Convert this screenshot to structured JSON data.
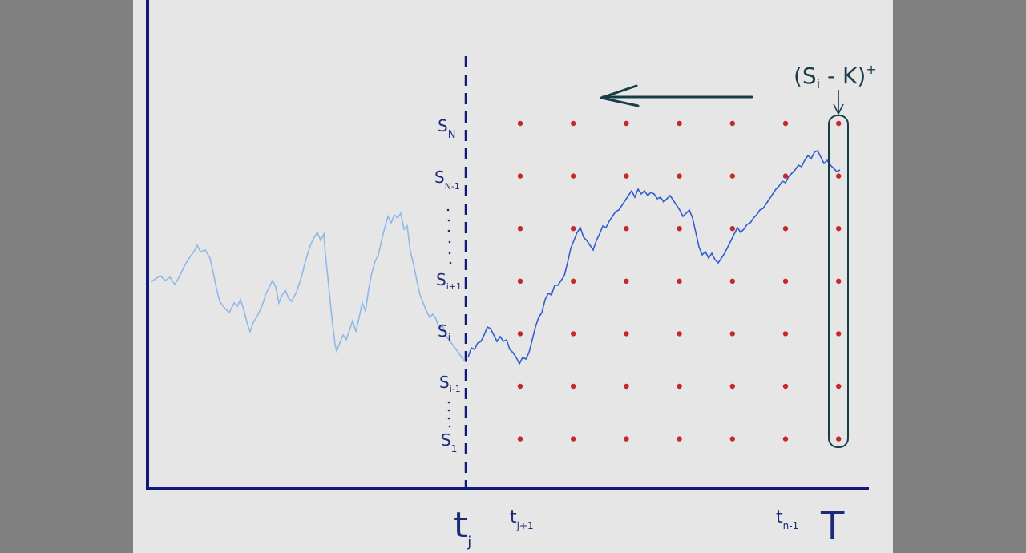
{
  "colors": {
    "outer_background": "#808080",
    "canvas_background": "#e6e6e6",
    "axis": "#101a7a",
    "labels": "#1c2a7a",
    "grid_points": "#c62828",
    "path_past": "#8fb8ea",
    "path_future": "#2f5fd0",
    "arrow_and_box": "#173d49"
  },
  "labels": {
    "t_j": {
      "main": "t",
      "sub": "j"
    },
    "t_j_plus_1": {
      "main": "t",
      "sub": "j+1"
    },
    "t_n_minus_1": {
      "main": "t",
      "sub": "n-1"
    },
    "T": "T",
    "S_N": {
      "main": "S",
      "sub": "N"
    },
    "S_N_minus_1": {
      "main": "S",
      "sub": "N-1"
    },
    "S_i_plus_1": {
      "main": "S",
      "sub": "i+1"
    },
    "S_i": {
      "main": "S",
      "sub": "i"
    },
    "S_i_minus_1": {
      "main": "S",
      "sub": "i-1"
    },
    "S_1": {
      "main": "S",
      "sub": "1"
    },
    "payoff": {
      "open": "(S",
      "sub": "i",
      "rest": " - K)",
      "sup": "+"
    }
  },
  "grid": {
    "columns": 7,
    "rows": 7
  }
}
